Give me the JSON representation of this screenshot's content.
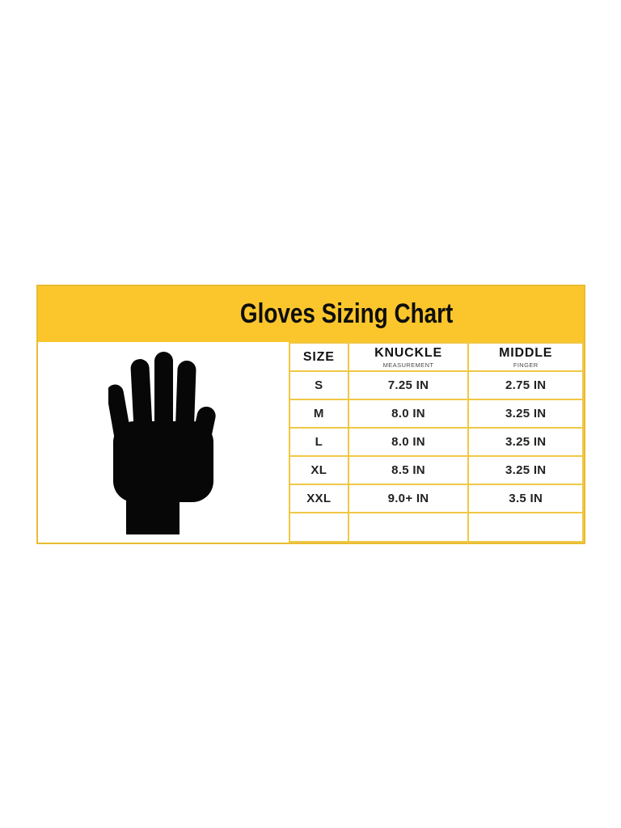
{
  "colors": {
    "header_bg": "#FBC62C",
    "grid_line": "#F0C845",
    "outer_border": "#E9BC32",
    "title_text": "#0E0E0E",
    "subtext": "#4A4A4A",
    "hand": "#070707",
    "page_bg": "#FFFFFF"
  },
  "icons": {
    "hand": "hand-silhouette-icon"
  },
  "chart_data": {
    "type": "table",
    "title": "Gloves Sizing Chart",
    "columns": [
      {
        "label": "SIZE",
        "sublabel": ""
      },
      {
        "label": "KNUCKLE",
        "sublabel": "MEASUREMENT"
      },
      {
        "label": "MIDDLE",
        "sublabel": "FINGER"
      }
    ],
    "rows": [
      [
        "S",
        "7.25 IN",
        "2.75 IN"
      ],
      [
        "M",
        "8.0 IN",
        "3.25 IN"
      ],
      [
        "L",
        "8.0 IN",
        "3.25 IN"
      ],
      [
        "XL",
        "8.5 IN",
        "3.25 IN"
      ],
      [
        "XXL",
        "9.0+ IN",
        "3.5 IN"
      ],
      [
        "",
        "",
        ""
      ]
    ],
    "layout_hints": {
      "header_band": "yellow",
      "grid": "yellow-lines",
      "hand_illustration": "left-panel"
    }
  }
}
